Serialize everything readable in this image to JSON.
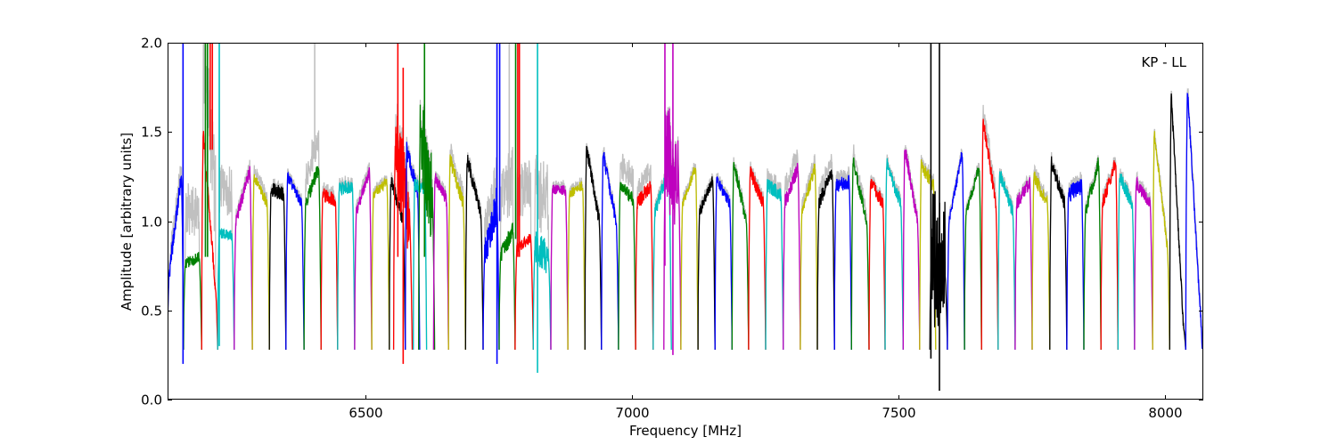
{
  "chart_data": {
    "type": "line",
    "title": "",
    "annotation": "KP - LL",
    "xlabel": "Frequency [MHz]",
    "ylabel": "Amplitude [arbitrary units]",
    "xlim": [
      6129,
      8072
    ],
    "ylim": [
      0.0,
      2.0
    ],
    "xticks": [
      6500,
      7000,
      7500,
      8000
    ],
    "xtick_labels": [
      "6500",
      "7000",
      "7500",
      "8000"
    ],
    "yticks": [
      0.0,
      0.5,
      1.0,
      1.5,
      2.0
    ],
    "ytick_labels": [
      "0.0",
      "0.5",
      "1.0",
      "1.5",
      "2.0"
    ],
    "grid": false,
    "colors": {
      "b": "#0000ff",
      "g": "#008000",
      "r": "#ff0000",
      "c": "#00bfbf",
      "m": "#bf00bf",
      "y": "#bfbf00",
      "k": "#000000",
      "gray": "#c0c0c0"
    },
    "floor": 0.28,
    "windows": [
      {
        "start": 6129,
        "end": 6159,
        "color": "b",
        "a": 0.7,
        "b": 1.25,
        "noise": 0.05,
        "shadow": 0.05
      },
      {
        "start": 6159,
        "end": 6193,
        "color": "g",
        "a": 0.76,
        "b": 0.8,
        "noise": 0.03,
        "shadow": 0.28
      },
      {
        "start": 6193,
        "end": 6223,
        "color": "r",
        "a": 1.5,
        "b": 0.62,
        "noise": 0.04,
        "shadow": 0.5
      },
      {
        "start": 6223,
        "end": 6254,
        "color": "c",
        "a": 0.93,
        "b": 0.92,
        "noise": 0.03,
        "shadow": 0.25
      },
      {
        "start": 6254,
        "end": 6288,
        "color": "m",
        "a": 1.0,
        "b": 1.28,
        "noise": 0.04,
        "shadow": 0.03
      },
      {
        "start": 6288,
        "end": 6320,
        "color": "y",
        "a": 1.25,
        "b": 1.1,
        "noise": 0.03,
        "shadow": 0.04
      },
      {
        "start": 6320,
        "end": 6351,
        "color": "k",
        "a": 1.18,
        "b": 1.15,
        "noise": 0.04,
        "shadow": 0.02
      },
      {
        "start": 6351,
        "end": 6385,
        "color": "b",
        "a": 1.25,
        "b": 1.1,
        "noise": 0.03,
        "shadow": 0.02
      },
      {
        "start": 6385,
        "end": 6417,
        "color": "g",
        "a": 1.1,
        "b": 1.3,
        "noise": 0.04,
        "shadow": 0.15
      },
      {
        "start": 6417,
        "end": 6448,
        "color": "r",
        "a": 1.15,
        "b": 1.12,
        "noise": 0.04,
        "shadow": 0.03
      },
      {
        "start": 6448,
        "end": 6480,
        "color": "c",
        "a": 1.18,
        "b": 1.2,
        "noise": 0.04,
        "shadow": 0.02
      },
      {
        "start": 6480,
        "end": 6512,
        "color": "m",
        "a": 1.05,
        "b": 1.28,
        "noise": 0.03,
        "shadow": 0.03
      },
      {
        "start": 6512,
        "end": 6545,
        "color": "y",
        "a": 1.15,
        "b": 1.22,
        "noise": 0.03,
        "shadow": 0.02
      },
      {
        "start": 6545,
        "end": 6575,
        "color": "k",
        "a": 1.23,
        "b": 1.0,
        "noise": 0.04,
        "shadow": 0.02
      },
      {
        "start": 6553,
        "end": 6588,
        "color": "r",
        "a": 1.45,
        "b": 1.0,
        "noise": 0.25,
        "shadow": 0.05
      },
      {
        "start": 6575,
        "end": 6602,
        "color": "b",
        "a": 1.4,
        "b": 1.15,
        "noise": 0.05,
        "shadow": 0.02
      },
      {
        "start": 6590,
        "end": 6615,
        "color": "c",
        "a": 1.2,
        "b": 1.18,
        "noise": 0.04,
        "shadow": 0.02
      },
      {
        "start": 6600,
        "end": 6630,
        "color": "g",
        "a": 1.5,
        "b": 1.1,
        "noise": 0.25,
        "shadow": 0.03
      },
      {
        "start": 6628,
        "end": 6656,
        "color": "m",
        "a": 1.25,
        "b": 1.12,
        "noise": 0.04,
        "shadow": 0.02
      },
      {
        "start": 6656,
        "end": 6688,
        "color": "y",
        "a": 1.35,
        "b": 1.1,
        "noise": 0.04,
        "shadow": 0.05
      },
      {
        "start": 6688,
        "end": 6721,
        "color": "k",
        "a": 1.35,
        "b": 1.05,
        "noise": 0.04,
        "shadow": 0.02
      },
      {
        "start": 6721,
        "end": 6751,
        "color": "b",
        "a": 0.8,
        "b": 1.1,
        "noise": 0.1,
        "shadow": 0.12
      },
      {
        "start": 6751,
        "end": 6781,
        "color": "g",
        "a": 0.8,
        "b": 0.95,
        "noise": 0.05,
        "shadow": 0.3
      },
      {
        "start": 6781,
        "end": 6815,
        "color": "r",
        "a": 0.85,
        "b": 0.9,
        "noise": 0.03,
        "shadow": 0.3
      },
      {
        "start": 6815,
        "end": 6848,
        "color": "c",
        "a": 0.85,
        "b": 0.8,
        "noise": 0.1,
        "shadow": 0.35
      },
      {
        "start": 6848,
        "end": 6880,
        "color": "m",
        "a": 1.18,
        "b": 1.17,
        "noise": 0.03,
        "shadow": 0.02
      },
      {
        "start": 6880,
        "end": 6912,
        "color": "y",
        "a": 1.15,
        "b": 1.2,
        "noise": 0.03,
        "shadow": 0.02
      },
      {
        "start": 6912,
        "end": 6943,
        "color": "k",
        "a": 1.42,
        "b": 1.0,
        "noise": 0.04,
        "shadow": 0.02
      },
      {
        "start": 6943,
        "end": 6975,
        "color": "b",
        "a": 1.38,
        "b": 1.0,
        "noise": 0.04,
        "shadow": 0.02
      },
      {
        "start": 6975,
        "end": 7007,
        "color": "g",
        "a": 1.2,
        "b": 1.12,
        "noise": 0.04,
        "shadow": 0.12
      },
      {
        "start": 7007,
        "end": 7040,
        "color": "r",
        "a": 1.1,
        "b": 1.2,
        "noise": 0.04,
        "shadow": 0.08
      },
      {
        "start": 7040,
        "end": 7074,
        "color": "c",
        "a": 1.05,
        "b": 1.3,
        "noise": 0.04,
        "shadow": 0.02
      },
      {
        "start": 7060,
        "end": 7092,
        "color": "m",
        "a": 1.4,
        "b": 1.2,
        "noise": 0.3,
        "shadow": 0.02
      },
      {
        "start": 7092,
        "end": 7124,
        "color": "y",
        "a": 1.1,
        "b": 1.3,
        "noise": 0.03,
        "shadow": 0.02
      },
      {
        "start": 7124,
        "end": 7156,
        "color": "k",
        "a": 1.05,
        "b": 1.23,
        "noise": 0.03,
        "shadow": 0.02
      },
      {
        "start": 7156,
        "end": 7188,
        "color": "b",
        "a": 1.23,
        "b": 1.1,
        "noise": 0.03,
        "shadow": 0.02
      },
      {
        "start": 7188,
        "end": 7219,
        "color": "g",
        "a": 1.33,
        "b": 1.0,
        "noise": 0.04,
        "shadow": 0.02
      },
      {
        "start": 7219,
        "end": 7251,
        "color": "r",
        "a": 1.28,
        "b": 1.1,
        "noise": 0.04,
        "shadow": 0.02
      },
      {
        "start": 7251,
        "end": 7284,
        "color": "c",
        "a": 1.2,
        "b": 1.15,
        "noise": 0.04,
        "shadow": 0.04
      },
      {
        "start": 7284,
        "end": 7316,
        "color": "m",
        "a": 1.1,
        "b": 1.3,
        "noise": 0.04,
        "shadow": 0.08
      },
      {
        "start": 7316,
        "end": 7348,
        "color": "y",
        "a": 1.05,
        "b": 1.3,
        "noise": 0.04,
        "shadow": 0.04
      },
      {
        "start": 7348,
        "end": 7380,
        "color": "k",
        "a": 1.1,
        "b": 1.28,
        "noise": 0.04,
        "shadow": 0.06
      },
      {
        "start": 7380,
        "end": 7412,
        "color": "b",
        "a": 1.2,
        "b": 1.22,
        "noise": 0.04,
        "shadow": 0.04
      },
      {
        "start": 7412,
        "end": 7445,
        "color": "g",
        "a": 1.35,
        "b": 1.0,
        "noise": 0.04,
        "shadow": 0.05
      },
      {
        "start": 7445,
        "end": 7475,
        "color": "r",
        "a": 1.22,
        "b": 1.1,
        "noise": 0.04,
        "shadow": 0.02
      },
      {
        "start": 7475,
        "end": 7509,
        "color": "c",
        "a": 1.32,
        "b": 1.1,
        "noise": 0.04,
        "shadow": 0.02
      },
      {
        "start": 7509,
        "end": 7540,
        "color": "m",
        "a": 1.42,
        "b": 1.0,
        "noise": 0.04,
        "shadow": 0.02
      },
      {
        "start": 7540,
        "end": 7570,
        "color": "y",
        "a": 1.32,
        "b": 1.2,
        "noise": 0.04,
        "shadow": 0.02
      },
      {
        "start": 7559,
        "end": 7592,
        "color": "k",
        "a": 0.8,
        "b": 0.7,
        "noise": 0.45,
        "shadow": 0.0
      },
      {
        "start": 7592,
        "end": 7624,
        "color": "b",
        "a": 1.0,
        "b": 1.38,
        "noise": 0.03,
        "shadow": 0.02
      },
      {
        "start": 7624,
        "end": 7656,
        "color": "g",
        "a": 1.05,
        "b": 1.3,
        "noise": 0.03,
        "shadow": 0.02
      },
      {
        "start": 7656,
        "end": 7687,
        "color": "r",
        "a": 1.57,
        "b": 1.1,
        "noise": 0.04,
        "shadow": 0.06
      },
      {
        "start": 7687,
        "end": 7719,
        "color": "c",
        "a": 1.27,
        "b": 1.05,
        "noise": 0.04,
        "shadow": 0.02
      },
      {
        "start": 7719,
        "end": 7751,
        "color": "m",
        "a": 1.1,
        "b": 1.22,
        "noise": 0.04,
        "shadow": 0.02
      },
      {
        "start": 7751,
        "end": 7784,
        "color": "y",
        "a": 1.25,
        "b": 1.1,
        "noise": 0.04,
        "shadow": 0.03
      },
      {
        "start": 7784,
        "end": 7816,
        "color": "k",
        "a": 1.33,
        "b": 1.1,
        "noise": 0.04,
        "shadow": 0.02
      },
      {
        "start": 7816,
        "end": 7848,
        "color": "b",
        "a": 1.15,
        "b": 1.2,
        "noise": 0.05,
        "shadow": 0.03
      },
      {
        "start": 7848,
        "end": 7880,
        "color": "g",
        "a": 1.05,
        "b": 1.33,
        "noise": 0.04,
        "shadow": 0.02
      },
      {
        "start": 7880,
        "end": 7912,
        "color": "r",
        "a": 1.1,
        "b": 1.33,
        "noise": 0.04,
        "shadow": 0.02
      },
      {
        "start": 7912,
        "end": 7943,
        "color": "c",
        "a": 1.25,
        "b": 1.1,
        "noise": 0.04,
        "shadow": 0.02
      },
      {
        "start": 7943,
        "end": 7977,
        "color": "m",
        "a": 1.22,
        "b": 1.1,
        "noise": 0.04,
        "shadow": 0.02
      },
      {
        "start": 7977,
        "end": 8009,
        "color": "y",
        "a": 1.5,
        "b": 0.85,
        "noise": 0.03,
        "shadow": 0.02
      },
      {
        "start": 8009,
        "end": 8039,
        "color": "k",
        "a": 1.72,
        "b": 0.4,
        "noise": 0.03,
        "shadow": 0.02
      },
      {
        "start": 8039,
        "end": 8075,
        "color": "b",
        "a": 1.75,
        "b": 0.3,
        "noise": 0.03,
        "shadow": 0.04
      }
    ],
    "spikes": [
      {
        "f": 6158,
        "color": "b",
        "from": 0.2,
        "to": 2.0
      },
      {
        "f": 6200,
        "color": "g",
        "from": 0.8,
        "to": 2.0
      },
      {
        "f": 6204,
        "color": "g",
        "from": 0.8,
        "to": 2.0
      },
      {
        "f": 6209,
        "color": "r",
        "from": 1.4,
        "to": 2.0
      },
      {
        "f": 6213,
        "color": "r",
        "from": 1.4,
        "to": 2.0
      },
      {
        "f": 6226,
        "color": "c",
        "from": 0.3,
        "to": 2.0
      },
      {
        "f": 6405,
        "color": "gray",
        "from": 1.35,
        "to": 2.0
      },
      {
        "f": 6561,
        "color": "r",
        "from": 0.8,
        "to": 2.0
      },
      {
        "f": 6571,
        "color": "r",
        "from": 0.2,
        "to": 1.86
      },
      {
        "f": 6611,
        "color": "g",
        "from": 0.8,
        "to": 2.0
      },
      {
        "f": 6747,
        "color": "b",
        "from": 0.2,
        "to": 2.0
      },
      {
        "f": 6752,
        "color": "b",
        "from": 1.0,
        "to": 2.0
      },
      {
        "f": 6770,
        "color": "gray",
        "from": 1.2,
        "to": 2.0
      },
      {
        "f": 6782,
        "color": "g",
        "from": 0.9,
        "to": 2.0
      },
      {
        "f": 6786,
        "color": "r",
        "from": 0.8,
        "to": 2.0
      },
      {
        "f": 6789,
        "color": "r",
        "from": 0.8,
        "to": 2.0
      },
      {
        "f": 6823,
        "color": "c",
        "from": 0.15,
        "to": 2.0
      },
      {
        "f": 7062,
        "color": "m",
        "from": 0.75,
        "to": 2.0
      },
      {
        "f": 7077,
        "color": "m",
        "from": 0.25,
        "to": 2.0
      },
      {
        "f": 7561,
        "color": "k",
        "from": 0.23,
        "to": 2.0
      },
      {
        "f": 7577,
        "color": "k",
        "from": 0.05,
        "to": 2.0
      }
    ]
  }
}
